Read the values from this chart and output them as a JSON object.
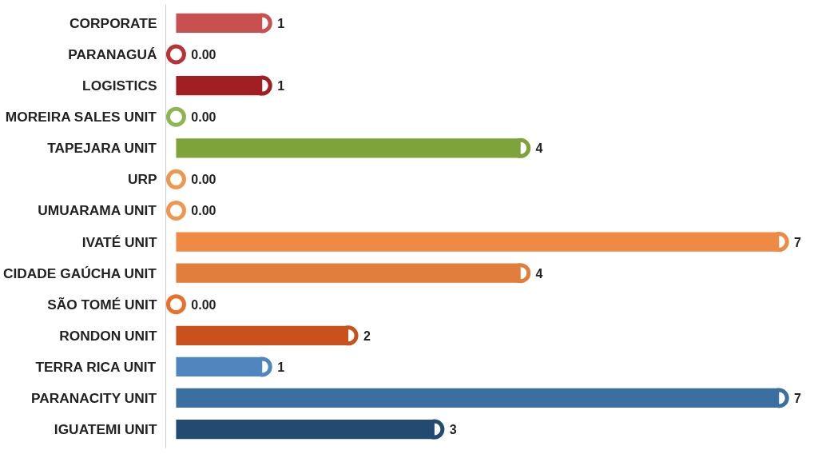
{
  "chart_data": {
    "type": "bar",
    "orientation": "horizontal",
    "grid": false,
    "categories": [
      "CORPORATE",
      "PARANAGUÁ",
      "LOGISTICS",
      "MOREIRA SALES UNIT",
      "TAPEJARA UNIT",
      "URP",
      "UMUARAMA UNIT",
      "IVATÉ UNIT",
      "CIDADE GAÚCHA UNIT",
      "SÃO TOMÉ UNIT",
      "RONDON UNIT",
      "TERRA RICA UNIT",
      "PARANACITY UNIT",
      "IGUATEMI UNIT"
    ],
    "series": [
      {
        "values": [
          1,
          0,
          1,
          0,
          4,
          0,
          0,
          7,
          4,
          0,
          2,
          1,
          7,
          3
        ],
        "value_labels": [
          "1",
          "0.00",
          "1",
          "0.00",
          "4",
          "0.00",
          "0.00",
          "7",
          "4",
          "0.00",
          "2",
          "1",
          "7",
          "3"
        ],
        "colors": [
          "#c8504f",
          "#b83236",
          "#a01f22",
          "#8db552",
          "#7ea33a",
          "#f0974f",
          "#f0974f",
          "#ee8a43",
          "#e17e3c",
          "#e9702a",
          "#c9521c",
          "#4f86c0",
          "#3a6fa0",
          "#234a70"
        ]
      },
      {
        "type": "scatter",
        "marker": "circle",
        "values": [
          1,
          0,
          1,
          0,
          4,
          0,
          0,
          7,
          4,
          0,
          2,
          1,
          7,
          3
        ],
        "colors": [
          "#c8504f",
          "#b83236",
          "#a01f22",
          "#8db552",
          "#7ea33a",
          "#f0974f",
          "#f0974f",
          "#ee8a43",
          "#e17e3c",
          "#e9702a",
          "#c9521c",
          "#4f86c0",
          "#3a6fa0",
          "#234a70"
        ]
      }
    ]
  }
}
